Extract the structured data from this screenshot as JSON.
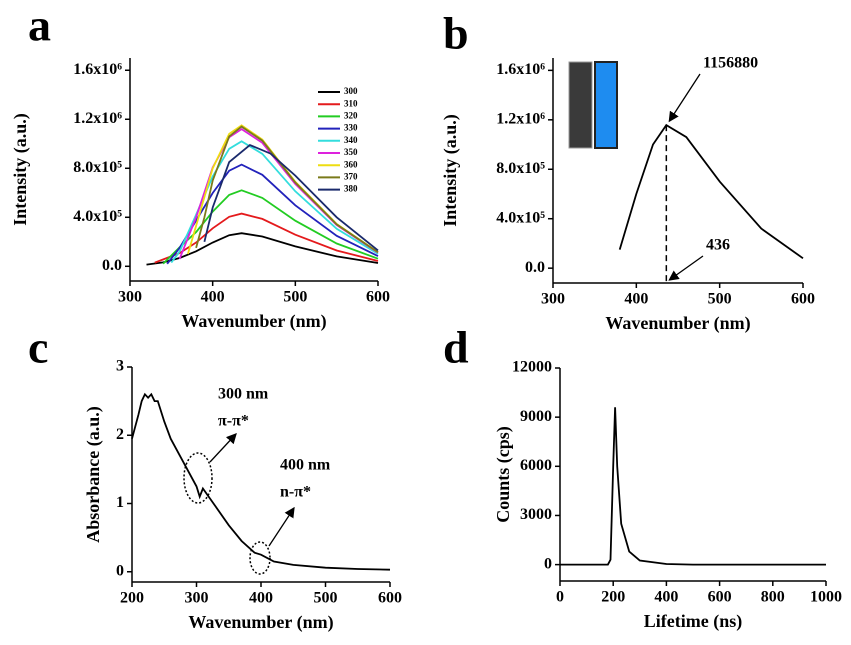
{
  "chart_data": [
    {
      "type": "line",
      "panel_label": "a",
      "xlabel": "Wavenumber (nm)",
      "ylabel": "Intensity (a.u.)",
      "xlim": [
        300,
        600
      ],
      "xticks": [
        300,
        400,
        500,
        600
      ],
      "ylim": [
        -120000,
        1700000
      ],
      "yticks": [
        {
          "value": 0,
          "label": "0.0"
        },
        {
          "value": 400000,
          "label": "4.0x10⁵"
        },
        {
          "value": 800000,
          "label": "8.0x10⁵"
        },
        {
          "value": 1200000,
          "label": "1.2x10⁶"
        },
        {
          "value": 1600000,
          "label": "1.6x10⁶"
        }
      ],
      "legend": "upper right",
      "series": [
        {
          "name": "300",
          "color": "#000000",
          "x": [
            320,
            340,
            360,
            380,
            400,
            420,
            435,
            460,
            500,
            550,
            600
          ],
          "values": [
            14000,
            32000,
            68000,
            122000,
            194000,
            254000,
            270000,
            243000,
            162000,
            81000,
            27000
          ]
        },
        {
          "name": "310",
          "color": "#e41a1c",
          "x": [
            330,
            360,
            380,
            400,
            420,
            435,
            460,
            500,
            550,
            600
          ],
          "values": [
            30000,
            108000,
            194000,
            310000,
            404000,
            430000,
            387000,
            258000,
            129000,
            43000
          ]
        },
        {
          "name": "320",
          "color": "#22cc22",
          "x": [
            340,
            360,
            380,
            400,
            420,
            435,
            460,
            500,
            550,
            600
          ],
          "values": [
            20000,
            155000,
            279000,
            446000,
            583000,
            620000,
            558000,
            372000,
            186000,
            62000
          ]
        },
        {
          "name": "330",
          "color": "#2222bb",
          "x": [
            345,
            360,
            380,
            400,
            420,
            435,
            460,
            500,
            550,
            600
          ],
          "values": [
            20000,
            150000,
            374000,
            598000,
            780000,
            830000,
            747000,
            498000,
            249000,
            83000
          ]
        },
        {
          "name": "340",
          "color": "#33dddd",
          "x": [
            350,
            360,
            380,
            400,
            420,
            435,
            460,
            500,
            550,
            600
          ],
          "values": [
            30000,
            120000,
            420000,
            734000,
            959000,
            1020000,
            918000,
            612000,
            306000,
            102000
          ]
        },
        {
          "name": "350",
          "color": "#dd22dd",
          "x": [
            360,
            380,
            400,
            420,
            435,
            460,
            500,
            550,
            600
          ],
          "values": [
            60000,
            400000,
            806000,
            1053000,
            1120000,
            1008000,
            672000,
            336000,
            112000
          ]
        },
        {
          "name": "360",
          "color": "#eedd11",
          "x": [
            370,
            380,
            400,
            420,
            435,
            460,
            500,
            550,
            600
          ],
          "values": [
            100000,
            330000,
            800000,
            1081000,
            1150000,
            1035000,
            690000,
            345000,
            115000
          ]
        },
        {
          "name": "370",
          "color": "#7a7a1a",
          "x": [
            380,
            390,
            400,
            420,
            435,
            460,
            500,
            550,
            600
          ],
          "values": [
            150000,
            400000,
            700000,
            1060000,
            1140000,
            1026000,
            684000,
            342000,
            114000
          ]
        },
        {
          "name": "380",
          "color": "#1a2a6c",
          "x": [
            390,
            400,
            420,
            445,
            470,
            500,
            550,
            600
          ],
          "values": [
            200000,
            480000,
            850000,
            990000,
            920000,
            740000,
            400000,
            130000
          ]
        }
      ]
    },
    {
      "type": "line",
      "panel_label": "b",
      "xlabel": "Wavenumber (nm)",
      "ylabel": "Intensity (a.u.)",
      "xlim": [
        300,
        600
      ],
      "xticks": [
        300,
        400,
        500,
        600
      ],
      "ylim": [
        -120000,
        1700000
      ],
      "yticks": [
        {
          "value": 0,
          "label": "0.0"
        },
        {
          "value": 400000,
          "label": "4.0x10⁵"
        },
        {
          "value": 800000,
          "label": "8.0x10⁵"
        },
        {
          "value": 1200000,
          "label": "1.2x10⁶"
        },
        {
          "value": 1600000,
          "label": "1.6x10⁶"
        }
      ],
      "series": [
        {
          "color": "#000000",
          "x": [
            380,
            400,
            420,
            436,
            460,
            500,
            550,
            600
          ],
          "values": [
            150000,
            600000,
            1000000,
            1156880,
            1060000,
            700000,
            320000,
            80000
          ]
        }
      ],
      "peak": {
        "x": 436,
        "y": 1156880
      },
      "annotations": [
        "1156880",
        "436"
      ]
    },
    {
      "type": "line",
      "panel_label": "c",
      "xlabel": "Wavenumber (nm)",
      "ylabel": "Absorbance (a.u.)",
      "xlim": [
        200,
        600
      ],
      "xticks": [
        200,
        300,
        400,
        500,
        600
      ],
      "ylim": [
        -0.15,
        3
      ],
      "yticks": [
        0,
        1,
        2,
        3
      ],
      "series": [
        {
          "color": "#000000",
          "x": [
            200,
            210,
            215,
            220,
            225,
            230,
            235,
            240,
            250,
            260,
            280,
            300,
            305,
            310,
            330,
            350,
            370,
            390,
            400,
            420,
            450,
            500,
            550,
            600
          ],
          "values": [
            1.95,
            2.3,
            2.5,
            2.6,
            2.55,
            2.6,
            2.5,
            2.5,
            2.2,
            1.95,
            1.6,
            1.25,
            1.1,
            1.22,
            0.95,
            0.68,
            0.45,
            0.28,
            0.25,
            0.15,
            0.1,
            0.06,
            0.04,
            0.03
          ]
        }
      ],
      "annotations": [
        "300 nm",
        "π-π*",
        "400 nm",
        "n-π*"
      ]
    },
    {
      "type": "line",
      "panel_label": "d",
      "xlabel": "Lifetime (ns)",
      "ylabel": "Counts (cps)",
      "xlim": [
        0,
        1000
      ],
      "xticks": [
        0,
        200,
        400,
        600,
        800,
        1000
      ],
      "ylim": [
        -1000,
        12000
      ],
      "yticks": [
        0,
        3000,
        6000,
        9000,
        12000
      ],
      "series": [
        {
          "color": "#000000",
          "x": [
            0,
            180,
            190,
            200,
            207,
            215,
            230,
            260,
            300,
            400,
            500,
            1000
          ],
          "values": [
            0,
            0,
            300,
            6000,
            9600,
            6000,
            2500,
            800,
            250,
            40,
            0,
            0
          ]
        }
      ]
    }
  ]
}
